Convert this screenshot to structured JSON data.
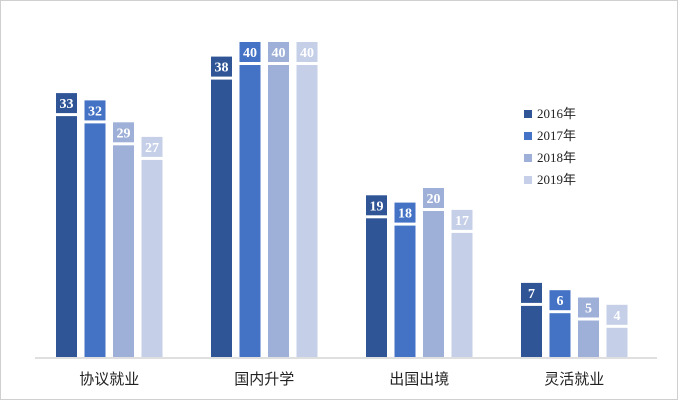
{
  "chart_data": {
    "type": "bar",
    "title": "",
    "xlabel": "",
    "ylabel": "",
    "ylim": [
      0,
      45
    ],
    "grid": false,
    "legend_position": "right",
    "categories": [
      "协议就业",
      "国内升学",
      "出国出境",
      "灵活就业"
    ],
    "series": [
      {
        "name": "2016年",
        "color": "#2f5597",
        "values": [
          33,
          38,
          19,
          7
        ]
      },
      {
        "name": "2017年",
        "color": "#4472c4",
        "values": [
          32,
          40,
          18,
          6
        ]
      },
      {
        "name": "2018年",
        "color": "#9fb0d8",
        "values": [
          29,
          40,
          20,
          5
        ]
      },
      {
        "name": "2019年",
        "color": "#c5cfe8",
        "values": [
          27,
          40,
          17,
          4
        ]
      }
    ]
  }
}
